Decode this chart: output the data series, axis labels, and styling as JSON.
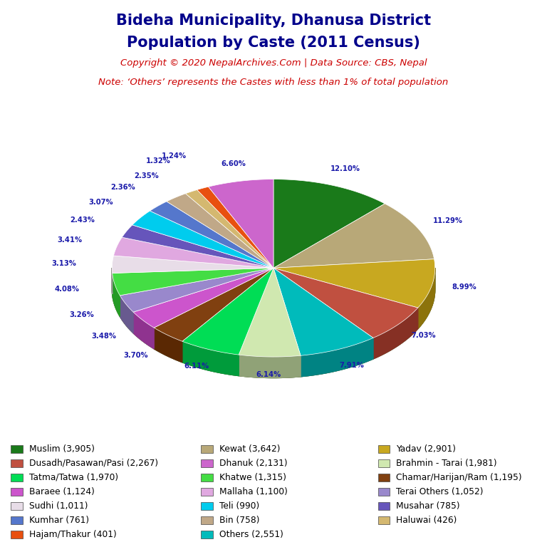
{
  "title_line1": "Bideha Municipality, Dhanusa District",
  "title_line2": "Population by Caste (2011 Census)",
  "copyright_text": "Copyright © 2020 NepalArchives.Com | Data Source: CBS, Nepal",
  "note_text": "Note: ‘Others’ represents the Castes with less than 1% of total population",
  "slices_ordered": [
    {
      "label": "Muslim (3,905)",
      "value": 3905,
      "color": "#1a7a1a"
    },
    {
      "label": "Kewat (3,642)",
      "value": 3642,
      "color": "#b8a878"
    },
    {
      "label": "Yadav (2,901)",
      "value": 2901,
      "color": "#c8a820"
    },
    {
      "label": "Dusadh/Pasawan/Pasi (2,267)",
      "value": 2267,
      "color": "#c05040"
    },
    {
      "label": "Others (2,551)",
      "value": 2551,
      "color": "#00bbbb"
    },
    {
      "label": "Brahmin - Tarai (1,981)",
      "value": 1981,
      "color": "#d0e8b0"
    },
    {
      "label": "Tatma/Tatwa (1,970)",
      "value": 1970,
      "color": "#00dd55"
    },
    {
      "label": "Chamar/Harijan/Ram (1,195)",
      "value": 1195,
      "color": "#804010"
    },
    {
      "label": "Baraee (1,124)",
      "value": 1124,
      "color": "#cc55cc"
    },
    {
      "label": "Terai Others (1,052)",
      "value": 1052,
      "color": "#9988cc"
    },
    {
      "label": "Khatwe (1,315)",
      "value": 1315,
      "color": "#44dd44"
    },
    {
      "label": "Sudhi (1,011)",
      "value": 1011,
      "color": "#e8dde8"
    },
    {
      "label": "Mallaha (1,100)",
      "value": 1100,
      "color": "#e0a8e0"
    },
    {
      "label": "Musahar (785)",
      "value": 785,
      "color": "#6655bb"
    },
    {
      "label": "Teli (990)",
      "value": 990,
      "color": "#00ccee"
    },
    {
      "label": "Kumhar (761)",
      "value": 761,
      "color": "#5577cc"
    },
    {
      "label": "Bin (758)",
      "value": 758,
      "color": "#c0a888"
    },
    {
      "label": "Haluwai (426)",
      "value": 426,
      "color": "#d4b870"
    },
    {
      "label": "Hajam/Thakur (401)",
      "value": 401,
      "color": "#e85010"
    },
    {
      "label": "Dhanuk (2,131)",
      "value": 2131,
      "color": "#cc66cc"
    }
  ],
  "label_color": "#1a1aaa",
  "title_color": "#00008b",
  "copyright_color": "#cc0000",
  "note_color": "#cc0000",
  "background_color": "#ffffff",
  "col1_labels": [
    "Muslim (3,905)",
    "Dusadh/Pasawan/Pasi (2,267)",
    "Tatma/Tatwa (1,970)",
    "Baraee (1,124)",
    "Sudhi (1,011)",
    "Kumhar (761)",
    "Hajam/Thakur (401)"
  ],
  "col2_labels": [
    "Kewat (3,642)",
    "Dhanuk (2,131)",
    "Khatwe (1,315)",
    "Mallaha (1,100)",
    "Teli (990)",
    "Bin (758)",
    "Others (2,551)"
  ],
  "col3_labels": [
    "Yadav (2,901)",
    "Brahmin - Tarai (1,981)",
    "Chamar/Harijan/Ram (1,195)",
    "Terai Others (1,052)",
    "Musahar (785)",
    "Haluwai (426)"
  ]
}
